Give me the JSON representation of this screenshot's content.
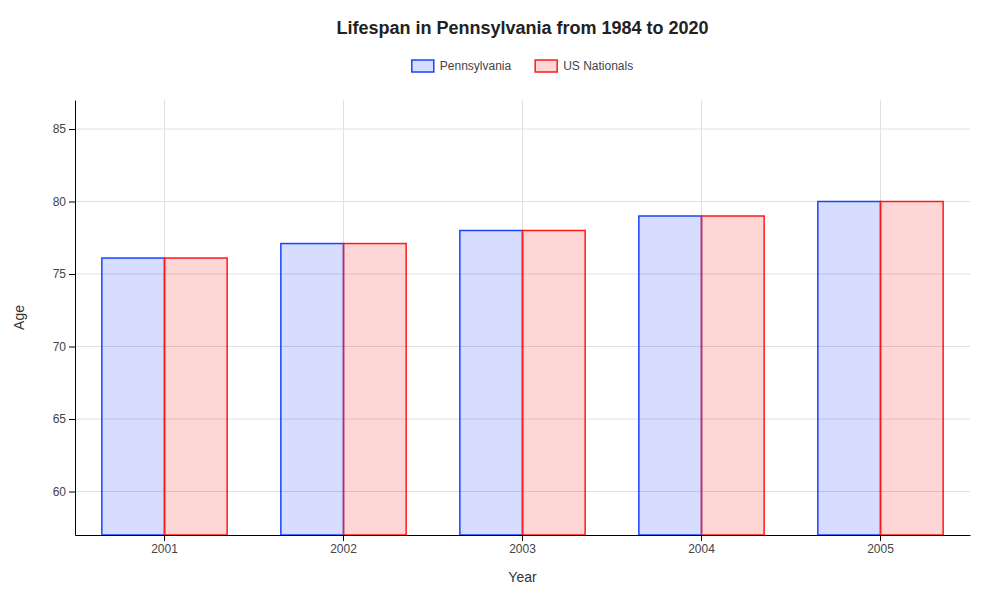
{
  "chart_data": {
    "type": "bar",
    "title": "Lifespan in Pennsylvania from 1984 to 2020",
    "xlabel": "Year",
    "ylabel": "Age",
    "categories": [
      "2001",
      "2002",
      "2003",
      "2004",
      "2005"
    ],
    "series": [
      {
        "name": "Pennsylvania",
        "color": "#1a44ff",
        "values": [
          76.1,
          77.1,
          78.0,
          79.0,
          80.0
        ]
      },
      {
        "name": "US Nationals",
        "color": "#ff1a1a",
        "values": [
          76.1,
          77.1,
          78.0,
          79.0,
          80.0
        ]
      }
    ],
    "ylim": [
      57,
      87
    ],
    "yticks": [
      60,
      65,
      70,
      75,
      80,
      85
    ],
    "grid": true,
    "legend": "top"
  }
}
